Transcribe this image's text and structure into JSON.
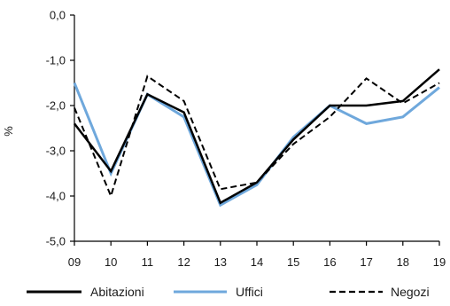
{
  "chart_data": {
    "type": "line",
    "title": "",
    "xlabel": "",
    "ylabel": "%",
    "x": [
      "09",
      "10",
      "11",
      "12",
      "13",
      "14",
      "15",
      "16",
      "17",
      "18",
      "19"
    ],
    "ylim": [
      -5.0,
      0.0
    ],
    "yticks": [
      "0,0",
      "-1,0",
      "-2,0",
      "-3,0",
      "-4,0",
      "-5,0"
    ],
    "ytick_values": [
      0,
      -1,
      -2,
      -3,
      -4,
      -5
    ],
    "grid": false,
    "legend_position": "bottom",
    "series": [
      {
        "name": "Abitazioni",
        "color": "#000000",
        "style": "solid",
        "values": [
          -2.4,
          -3.45,
          -1.75,
          -2.15,
          -4.15,
          -3.7,
          -2.75,
          -2.0,
          -2.0,
          -1.9,
          -1.2
        ]
      },
      {
        "name": "Uffici",
        "color": "#6fa8dc",
        "style": "solid",
        "values": [
          -1.5,
          -3.5,
          -1.75,
          -2.25,
          -4.2,
          -3.75,
          -2.7,
          -2.0,
          -2.4,
          -2.25,
          -1.6
        ]
      },
      {
        "name": "Negozi",
        "color": "#000000",
        "style": "dashed",
        "values": [
          -2.05,
          -4.0,
          -1.35,
          -1.9,
          -3.85,
          -3.7,
          -2.85,
          -2.25,
          -1.4,
          -1.95,
          -1.5
        ]
      }
    ]
  }
}
